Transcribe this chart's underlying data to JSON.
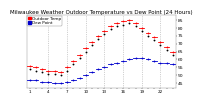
{
  "title": "Milwaukee Weather Outdoor Temperature vs Dew Point (24 Hours)",
  "title_fontsize": 4.0,
  "bg_color": "#ffffff",
  "plot_bg_color": "#ffffff",
  "ylim": [
    42,
    88
  ],
  "yticks": [
    45,
    50,
    55,
    60,
    65,
    70,
    75,
    80,
    85
  ],
  "ytick_fontsize": 3.2,
  "xtick_fontsize": 3.0,
  "hours": [
    1,
    2,
    3,
    4,
    5,
    6,
    7,
    8,
    9,
    10,
    11,
    12,
    13,
    14,
    15,
    16,
    17,
    18,
    19,
    20,
    21,
    22,
    23,
    24
  ],
  "temp": [
    56,
    55,
    54,
    53,
    53,
    52,
    55,
    59,
    63,
    67,
    71,
    75,
    78,
    81,
    83,
    84,
    85,
    83,
    80,
    77,
    74,
    71,
    68,
    65
  ],
  "dewpoint": [
    47,
    47,
    46,
    46,
    45,
    45,
    46,
    47,
    48,
    50,
    52,
    54,
    55,
    57,
    58,
    59,
    60,
    61,
    61,
    60,
    59,
    58,
    58,
    57
  ],
  "apparent": [
    54,
    53,
    52,
    51,
    51,
    50,
    53,
    57,
    61,
    65,
    69,
    73,
    76,
    79,
    81,
    82,
    83,
    81,
    78,
    75,
    72,
    69,
    66,
    63
  ],
  "temp_color": "#ff0000",
  "dewpoint_color": "#0000cc",
  "apparent_color": "#000000",
  "vline_color": "#aaaaaa",
  "vline_hours": [
    4,
    7,
    10,
    13,
    16,
    19,
    22
  ],
  "marker_size": 1.8,
  "legend_label_temp": "Outdoor Temp",
  "legend_label_dew": "Dew Point",
  "legend_fontsize": 3.0
}
